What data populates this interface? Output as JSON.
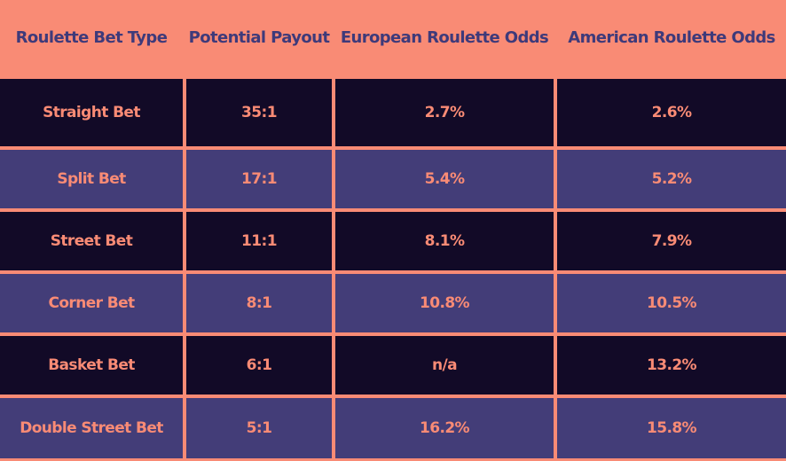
{
  "table": {
    "header": [
      "Roulette Bet Type",
      "Potential Payout",
      "European Roulette Odds",
      "American Roulette Odds"
    ],
    "rows": [
      [
        "Straight Bet",
        "35:1",
        "2.7%",
        "2.6%"
      ],
      [
        "Split Bet",
        "17:1",
        "5.4%",
        "5.2%"
      ],
      [
        "Street Bet",
        "11:1",
        "8.1%",
        "7.9%"
      ],
      [
        "Corner Bet",
        "8:1",
        "10.8%",
        "10.5%"
      ],
      [
        "Basket Bet",
        "6:1",
        "n/a",
        "13.2%"
      ],
      [
        "Double Street Bet",
        "5:1",
        "16.2%",
        "15.8%"
      ]
    ]
  }
}
